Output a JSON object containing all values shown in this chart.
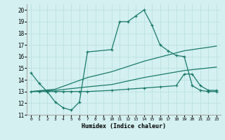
{
  "line1_x": [
    0,
    1,
    2,
    3,
    4,
    5,
    6,
    7,
    10,
    11,
    12,
    13,
    14,
    15,
    16,
    17,
    18,
    19,
    20,
    21,
    22,
    23
  ],
  "line1_y": [
    14.6,
    13.7,
    13.0,
    12.1,
    11.6,
    11.4,
    12.1,
    16.4,
    16.6,
    19.0,
    19.0,
    19.5,
    20.0,
    18.7,
    17.0,
    16.5,
    16.1,
    16.0,
    13.5,
    13.1,
    13.0,
    13.0
  ],
  "line2_x": [
    0,
    3,
    7,
    10,
    14,
    19,
    23
  ],
  "line2_y": [
    13.0,
    13.2,
    14.2,
    14.7,
    15.6,
    16.5,
    16.9
  ],
  "line3_x": [
    0,
    3,
    7,
    10,
    14,
    19,
    23
  ],
  "line3_y": [
    13.0,
    13.1,
    13.4,
    13.6,
    14.2,
    14.8,
    15.1
  ],
  "line4_x": [
    0,
    1,
    2,
    3,
    4,
    5,
    6,
    7,
    10,
    12,
    14,
    16,
    18,
    19,
    20,
    21,
    22,
    23
  ],
  "line4_y": [
    13.0,
    13.0,
    13.0,
    13.0,
    13.0,
    13.0,
    13.0,
    13.0,
    13.1,
    13.2,
    13.3,
    13.4,
    13.5,
    14.5,
    14.5,
    13.5,
    13.1,
    13.1
  ],
  "line_color": "#1a7a6a",
  "bg_color": "#d4f0f0",
  "grid_color": "#b8dede",
  "xlabel": "Humidex (Indice chaleur)",
  "xlim": [
    -0.5,
    23.5
  ],
  "ylim": [
    11,
    20.5
  ],
  "yticks": [
    11,
    12,
    13,
    14,
    15,
    16,
    17,
    18,
    19,
    20
  ],
  "xticks": [
    0,
    1,
    2,
    3,
    4,
    5,
    6,
    7,
    8,
    9,
    10,
    11,
    12,
    13,
    14,
    15,
    16,
    17,
    18,
    19,
    20,
    21,
    22,
    23
  ]
}
